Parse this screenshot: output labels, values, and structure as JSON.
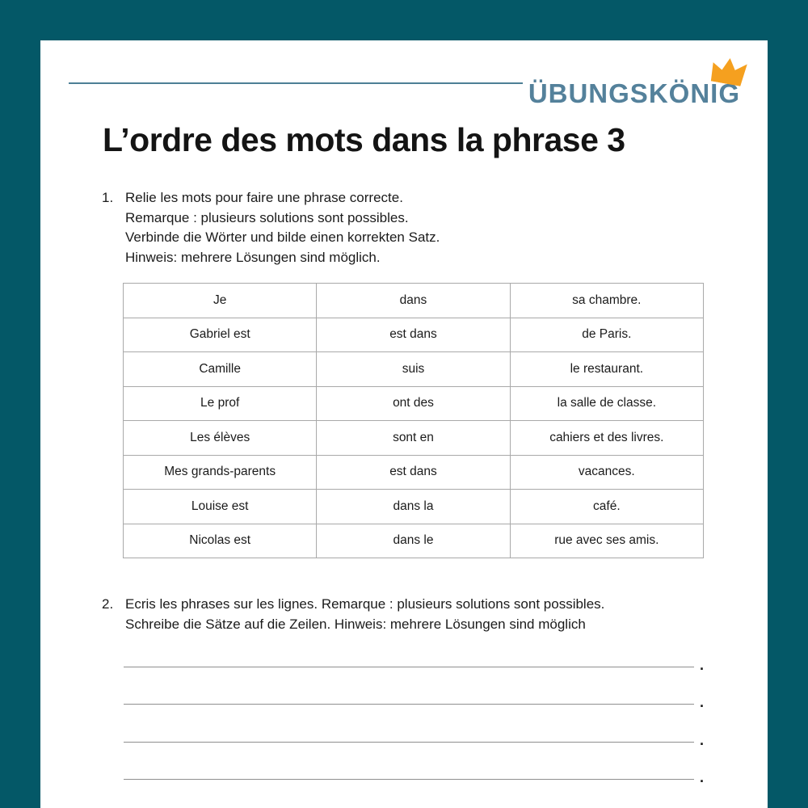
{
  "page": {
    "background_color": "#045867",
    "paper_color": "#ffffff"
  },
  "header": {
    "logo_text": "ÜBUNGSKÖNIG",
    "logo_color": "#54819b",
    "crown_icon": "crown",
    "crown_color": "#f5a01f",
    "rule_color": "#4d7f95"
  },
  "title": "L’ordre des mots dans la phrase 3",
  "exercise1": {
    "number": "1.",
    "instructions": [
      "Relie les mots pour faire une phrase correcte.",
      "Remarque : plusieurs solutions sont possibles.",
      "Verbinde die Wörter und bilde einen korrekten Satz.",
      "Hinweis: mehrere Lösungen sind möglich."
    ],
    "table": {
      "border_color": "#a9a9a9",
      "rows": [
        [
          "Je",
          "dans",
          "sa chambre."
        ],
        [
          "Gabriel est",
          "est dans",
          "de Paris."
        ],
        [
          "Camille",
          "suis",
          "le restaurant."
        ],
        [
          "Le prof",
          "ont des",
          "la salle de classe."
        ],
        [
          "Les élèves",
          "sont en",
          "cahiers et des livres."
        ],
        [
          "Mes grands-parents",
          "est dans",
          "vacances."
        ],
        [
          "Louise est",
          "dans la",
          "café."
        ],
        [
          "Nicolas est",
          "dans le",
          "rue avec ses amis."
        ]
      ]
    }
  },
  "exercise2": {
    "number": "2.",
    "instructions": [
      "Ecris les phrases sur les lignes. Remarque : plusieurs solutions sont possibles.",
      "Schreibe die Sätze auf die Zeilen. Hinweis: mehrere Lösungen sind möglich"
    ],
    "writing_lines": [
      ".",
      ".",
      ".",
      "."
    ]
  }
}
